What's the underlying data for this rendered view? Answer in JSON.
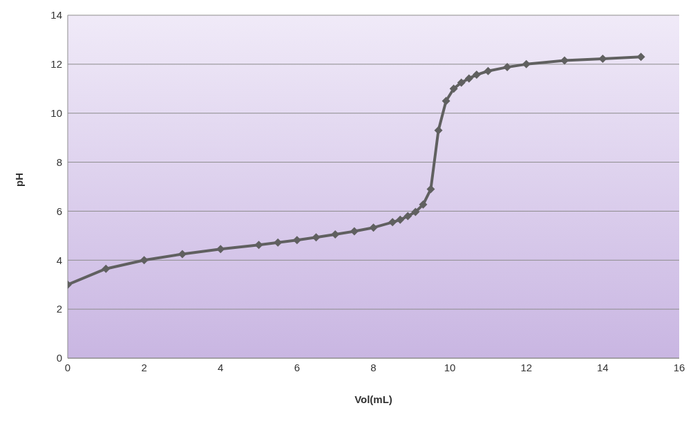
{
  "chart_data": {
    "type": "line",
    "xlabel": "Vol(mL)",
    "ylabel": "pH",
    "x": [
      0,
      1,
      2,
      3,
      4,
      5,
      5.5,
      6,
      6.5,
      7,
      7.5,
      8,
      8.5,
      8.7,
      8.9,
      9.1,
      9.3,
      9.5,
      9.7,
      9.9,
      10.1,
      10.3,
      10.5,
      10.7,
      11,
      11.5,
      12,
      13,
      14,
      15
    ],
    "series": [
      {
        "color": "#606060",
        "values": [
          3.0,
          3.65,
          4.0,
          4.25,
          4.45,
          4.62,
          4.72,
          4.82,
          4.93,
          5.05,
          5.18,
          5.33,
          5.55,
          5.65,
          5.8,
          5.97,
          6.27,
          6.9,
          9.3,
          10.5,
          11.0,
          11.25,
          11.42,
          11.57,
          11.72,
          11.88,
          12.0,
          12.15,
          12.22,
          12.3
        ]
      }
    ],
    "xlim": [
      0,
      16
    ],
    "xticks": [
      0,
      2,
      4,
      6,
      8,
      10,
      12,
      14,
      16
    ],
    "ylim": [
      0,
      14
    ],
    "yticks": [
      0,
      2,
      4,
      6,
      8,
      10,
      12,
      14
    ],
    "grid": "y",
    "marker": "diamond",
    "line_style": "solid"
  }
}
